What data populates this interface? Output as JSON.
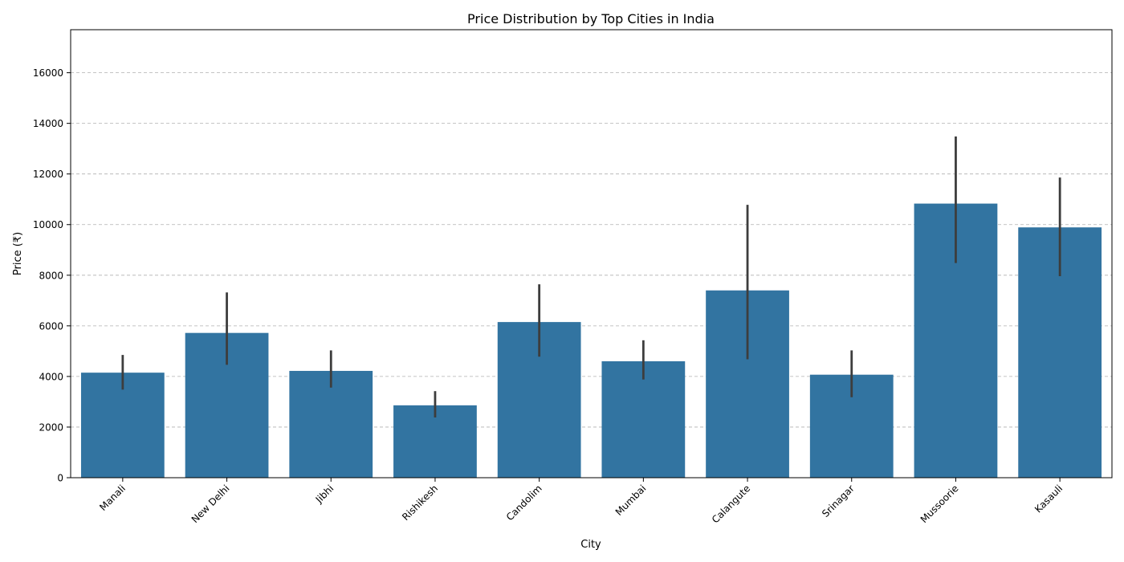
{
  "chart_data": {
    "type": "bar",
    "title": "Price Distribution by Top Cities in India",
    "xlabel": "City",
    "ylabel": "Price (₹)",
    "ylim": [
      0,
      17700
    ],
    "yticks": [
      0,
      2000,
      4000,
      6000,
      8000,
      10000,
      12000,
      14000,
      16000
    ],
    "grid": "y-dashed",
    "bar_color": "#3274a1",
    "errorbar_color": "#3d3d3d",
    "categories": [
      "Manali",
      "New Delhi",
      "Jibhi",
      "Rishikesh",
      "Candolim",
      "Mumbai",
      "Calangute",
      "Srinagar",
      "Mussoorie",
      "Kasauli"
    ],
    "values": [
      4150,
      5720,
      4220,
      2860,
      6150,
      4600,
      7400,
      4070,
      10830,
      9890
    ],
    "error_low": [
      3480,
      4460,
      3560,
      2380,
      4780,
      3880,
      4680,
      3180,
      8480,
      7960
    ],
    "error_high": [
      4850,
      7320,
      5030,
      3420,
      7640,
      5430,
      10780,
      5030,
      13480,
      11860
    ]
  }
}
